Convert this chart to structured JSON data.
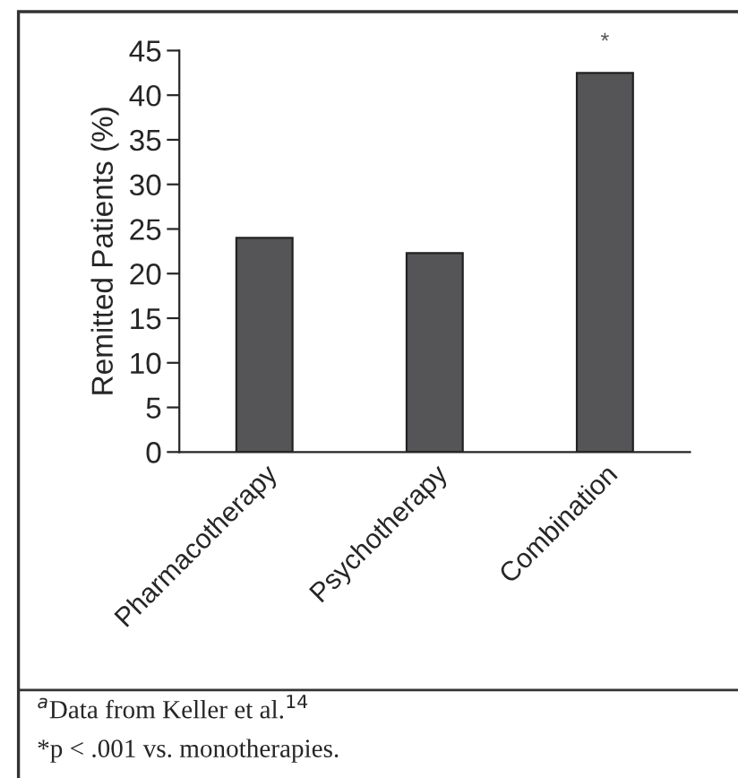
{
  "chart_data": {
    "type": "bar",
    "ylabel": "Remitted Patients (%)",
    "categories": [
      "Pharmacotherapy",
      "Psychotherapy",
      "Combination"
    ],
    "values": [
      24,
      22.3,
      42.5
    ],
    "color": "#555558",
    "ylim": [
      0,
      45
    ],
    "yticks": [
      0,
      5,
      10,
      15,
      20,
      25,
      30,
      35,
      40,
      45
    ],
    "grid": false,
    "legend": false,
    "annotations": [
      {
        "text": "*",
        "x": "Combination",
        "y": 42.5
      },
      "$^{a}$Data from Keller et al.$^{14}$",
      "*p < .001 vs. monotherapies."
    ]
  }
}
